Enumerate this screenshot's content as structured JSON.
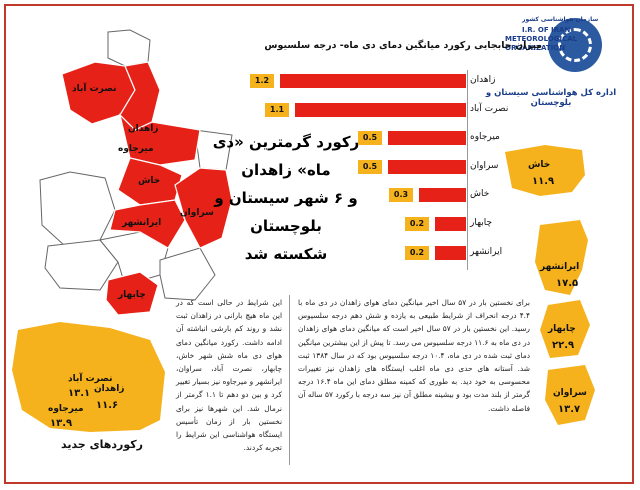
{
  "header": {
    "logo_lines": [
      "سازمان هواشناسی کشور",
      "I.R. OF IRAN",
      "METEOROLOGICAL",
      "ORGANIZATION"
    ],
    "office_name": "اداره کل هواشناسی سیستان و بلوچستان"
  },
  "headline": [
    "رکورد گرمترین «دی ماه» زاهدان",
    "و ۶ شهر سیستان و بلوچستان",
    "شکسته شد"
  ],
  "map_labels": [
    "نصرت آباد",
    "زاهدان",
    "میرجاوه",
    "خاش",
    "سراوان",
    "ایرانشهر",
    "چابهار"
  ],
  "chart_data": {
    "type": "bar",
    "title": "میزان جابجایی رکورد میانگین دمای دی ماه- درجه سلسیوس",
    "categories": [
      "زاهدان",
      "نصرت آباد",
      "میرجاوه",
      "سراوان",
      "خاش",
      "چابهار",
      "ایرانشهر"
    ],
    "values": [
      1.2,
      1.1,
      0.5,
      0.5,
      0.3,
      0.2,
      0.2
    ],
    "value_labels": [
      "1.2",
      "1.1",
      "0.5",
      "0.5",
      "0.3",
      "0.2",
      "0.2"
    ],
    "bar_color": "#e62117",
    "label_box_color": "#f6b21d"
  },
  "side_records": [
    {
      "name": "خاش",
      "value": "۱۱.۹"
    },
    {
      "name": "ایرانشهر",
      "value": "۱۷.۵"
    },
    {
      "name": "چابهار",
      "value": "۲۲.۹"
    },
    {
      "name": "سراوان",
      "value": "۱۳.۷"
    }
  ],
  "new_records": {
    "title": "رکوردهای جدید",
    "items": [
      {
        "name": "نصرت آباد",
        "value": "۱۳.۱"
      },
      {
        "name": "زاهدان",
        "value": "۱۱.۶"
      },
      {
        "name": "میرجاوه",
        "value": "۱۳.۹"
      }
    ]
  },
  "article": {
    "right": "برای نخستین بار در ۵۷ سال اخیر میانگین دمای هوای زاهدان در دی ماه با ۴.۴ درجه انحراف از شرایط طبیعی به یازده و شش دهم درجه سلسیوس رسید. این نخستین بار در ۵۷ سال اخیر است که میانگین دمای هوای زاهدان در دی ماه به ۱۱.۶ درجه سلسیوس می رسد. تا پیش از این بیشترین میانگین دمای ثبت شده در دی ماه، ۱۰.۴ درجه سلسیوس بود که در سال ۱۳۸۴ ثبت شد. آستانه های حدی دی ماه اغلب ایستگاه های زاهدان نیز تغییرات محسوسی به خود دید. به طوری که کمینه مطلق دمای این ماه ۱۶.۴ درجه گرمتر از بلند مدت بود و بیشینه مطلق آن نیز سه درجه با رکورد ۵۷ ساله آن فاصله داشت.",
    "left": "این شرایط در حالی است که در این ماه هیچ بارانی در زاهدان ثبت نشد و روند کم بارشی انباشته آن ادامه داشت. رکورد میانگین دمای هوای دی ماه شش شهر خاش، چابهار، نصرت آباد، سراوان، ایرانشهر و میرجاوه نیز بسیار تغییر کرد و بین دو دهم تا ۱.۱ گرمتر از نرمال شد. این شهرها نیز برای نخستین بار از زمان تأسیس ایستگاه هواشناسی این شرایط را تجربه کردند."
  }
}
